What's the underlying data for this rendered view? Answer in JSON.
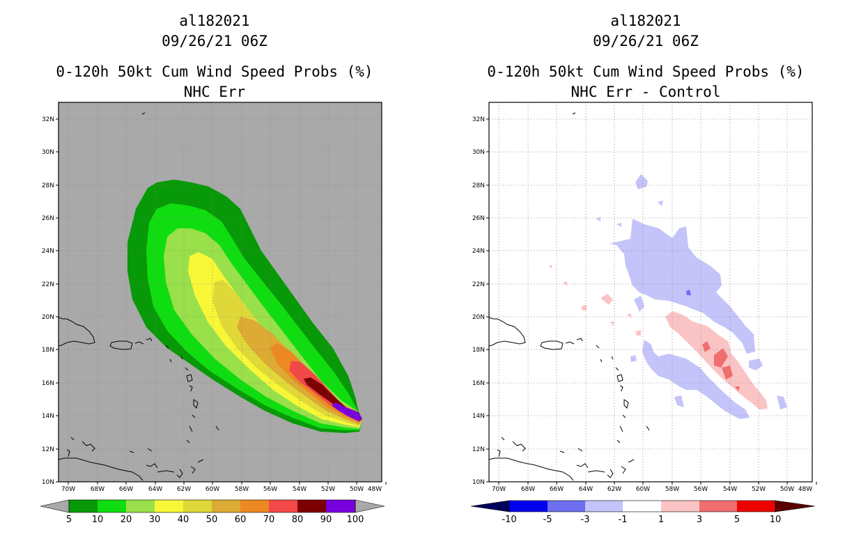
{
  "left_panel": {
    "title_lines": [
      "al182021",
      "09/26/21 06Z",
      "0-120h 50kt Cum Wind Speed Probs (%)",
      "NHC Err"
    ],
    "background_color": "#a9a9a9",
    "colorbar": {
      "colors": [
        "#a9a9a9",
        "#079907",
        "#10dd10",
        "#99e04a",
        "#f7f738",
        "#e0d838",
        "#ddaa33",
        "#ee8822",
        "#f34848",
        "#7d0000",
        "#7700dd",
        "#a9a9a9"
      ],
      "labels": [
        "5",
        "10",
        "20",
        "30",
        "40",
        "50",
        "60",
        "70",
        "80",
        "90",
        "100"
      ]
    }
  },
  "right_panel": {
    "title_lines": [
      "al182021",
      "09/26/21 06Z",
      "0-120h 50kt Cum Wind Speed Probs (%)",
      "NHC Err - Control"
    ],
    "background_color": "#ffffff",
    "colorbar": {
      "colors": [
        "#00005a",
        "#0000ee",
        "#6e6ef0",
        "#c4c4fa",
        "#ffffff",
        "#fbc4c4",
        "#f06e6e",
        "#ee0000",
        "#5a0000"
      ],
      "labels": [
        "-10",
        "-5",
        "-3",
        "-1",
        "1",
        "3",
        "5",
        "10"
      ]
    }
  },
  "axes": {
    "lat_labels": [
      "32N",
      "30N",
      "28N",
      "26N",
      "24N",
      "22N",
      "20N",
      "18N",
      "16N",
      "14N",
      "12N",
      "10N"
    ],
    "lon_labels": [
      "70W",
      "68W",
      "66W",
      "64W",
      "62W",
      "60W",
      "58W",
      "56W",
      "54W",
      "52W",
      "50W",
      "48W"
    ]
  },
  "colors": {
    "green_dark": "#079907",
    "green": "#10dd10",
    "yellow_green": "#99e04a",
    "yellow": "#f7f738",
    "gold": "#e0d838",
    "orange_tan": "#ddaa33",
    "orange": "#ee8822",
    "red": "#f34848",
    "dark_red": "#7d0000",
    "purple": "#7700dd",
    "light_blue": "#c4c4fa",
    "blue": "#6e6ef0",
    "light_pink": "#fbc4c4",
    "pink_red": "#f06e6e"
  }
}
